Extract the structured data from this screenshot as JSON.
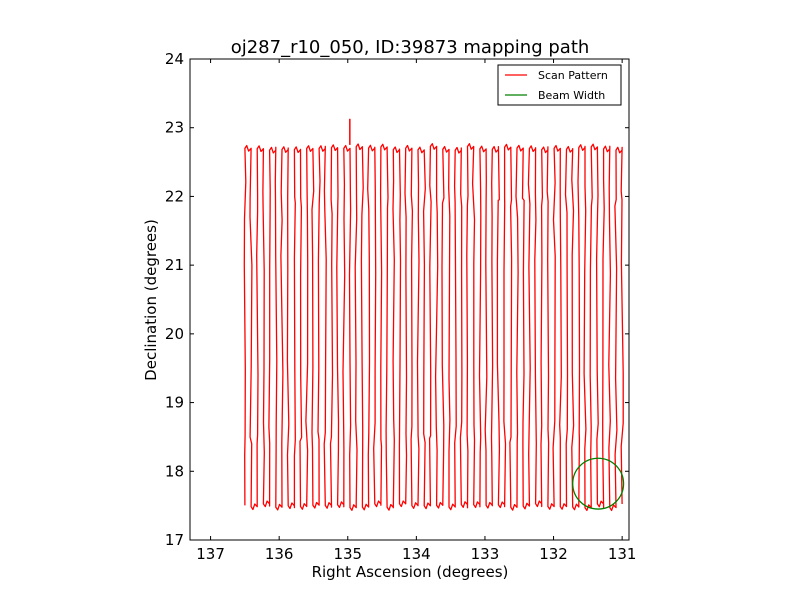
{
  "chart_data": {
    "type": "line",
    "title": "oj287_r10_050, ID:39873 mapping path",
    "xlabel": "Right Ascension (degrees)",
    "ylabel": "Declination (degrees)",
    "xlim": [
      137.3,
      130.9
    ],
    "ylim": [
      17,
      24
    ],
    "x_inverted": true,
    "xticks": [
      137,
      136,
      135,
      134,
      133,
      132,
      131
    ],
    "yticks": [
      17,
      18,
      19,
      20,
      21,
      22,
      23,
      24
    ],
    "grid": false,
    "legend_position": "top-right",
    "scan": {
      "ra_start": 136.5,
      "ra_end": 131.0,
      "leg_count": 62,
      "dec_low": 17.5,
      "dec_high": 22.7
    },
    "spike": {
      "ra": 134.97,
      "dec_from": 22.75,
      "dec_to": 23.13
    },
    "series": [
      {
        "name": "Scan Pattern",
        "color": "#ff0000",
        "kind": "scan"
      },
      {
        "name": "Beam Width",
        "color": "#008000",
        "kind": "circle",
        "center": [
          131.35,
          17.82
        ],
        "radius_dec": 0.37
      }
    ]
  }
}
